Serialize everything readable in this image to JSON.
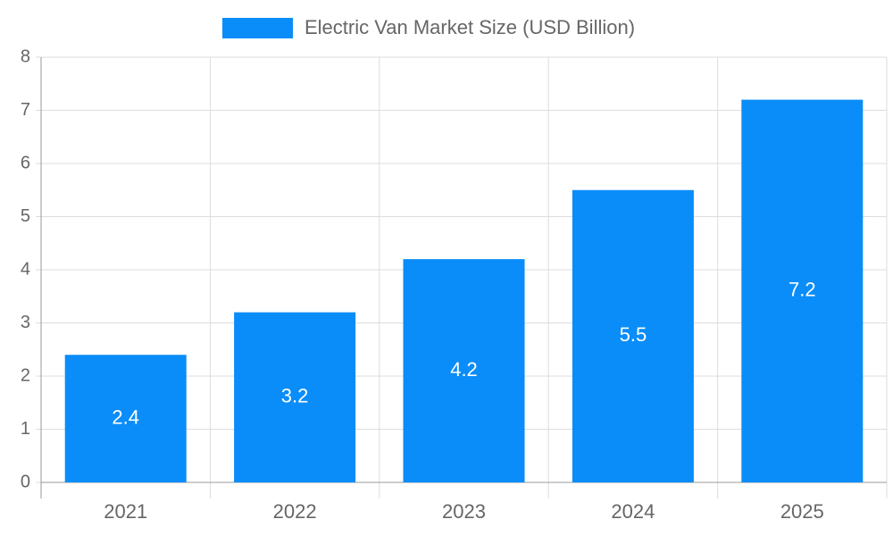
{
  "chart_data": {
    "type": "bar",
    "categories": [
      "2021",
      "2022",
      "2023",
      "2024",
      "2025"
    ],
    "series": [
      {
        "name": "Electric Van Market Size (USD Billion)",
        "color": "#0a8df9",
        "values": [
          2.4,
          3.2,
          4.2,
          5.5,
          7.2
        ]
      }
    ],
    "ylim": [
      0,
      8
    ],
    "yticks": [
      0,
      1,
      2,
      3,
      4,
      5,
      6,
      7,
      8
    ],
    "grid": true,
    "legend": "top"
  }
}
